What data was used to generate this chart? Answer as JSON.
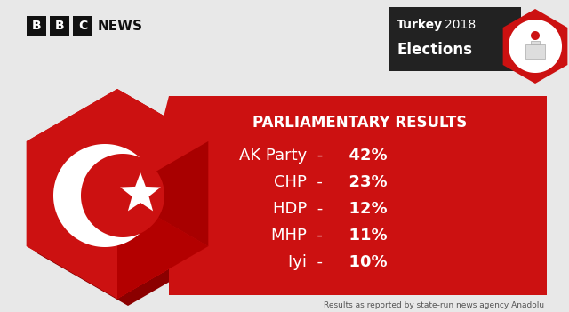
{
  "background_color": "#e8e8e8",
  "title_text": "PARLIAMENTARY RESULTS",
  "parties": [
    "AK Party",
    "CHP",
    "HDP",
    "MHP",
    "Iyi"
  ],
  "percentages": [
    "42%",
    "23%",
    "12%",
    "11%",
    "10%"
  ],
  "red_color": "#cc1111",
  "dark_red": "#8b0000",
  "mid_red": "#b30000",
  "white": "#ffffff",
  "black": "#111111",
  "footer_text": "Results as reported by state-run news agency Anadolu",
  "turkey_label": "Turkey",
  "year_label": "2018",
  "elections_label": "Elections",
  "header_bg": "#222222",
  "badge_hex_color": "#cc1111"
}
